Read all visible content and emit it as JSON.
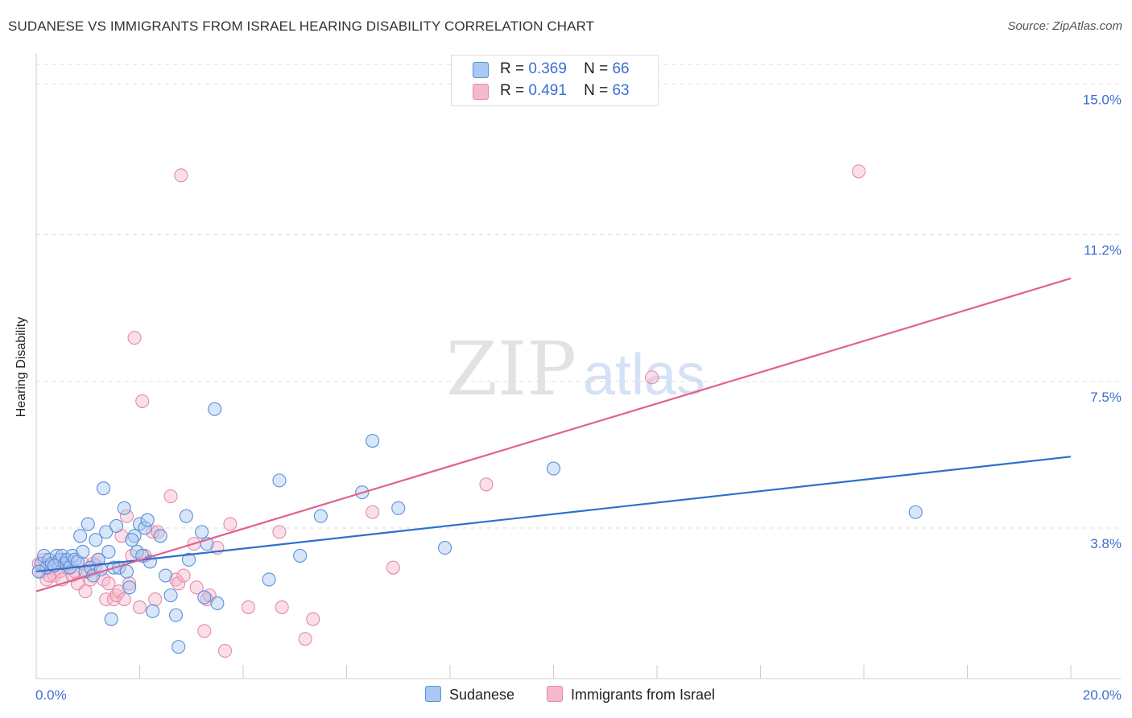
{
  "title": "SUDANESE VS IMMIGRANTS FROM ISRAEL HEARING DISABILITY CORRELATION CHART",
  "source": "Source: ZipAtlas.com",
  "watermark": {
    "zip": "ZIP",
    "atlas": "atlas"
  },
  "legend": {
    "rows": [
      {
        "r_label": "R =",
        "r_value": "0.369",
        "n_label": "N =",
        "n_value": "66"
      },
      {
        "r_label": "R =",
        "r_value": "0.491",
        "n_label": "N =",
        "n_value": "63"
      }
    ]
  },
  "bottom_legend": {
    "sudanese": "Sudanese",
    "israel": "Immigrants from Israel"
  },
  "colors": {
    "blue_fill": "#a9c8f2",
    "blue_stroke": "#5b8fd8",
    "blue_line": "#2f6fd0",
    "pink_fill": "#f6b8cb",
    "pink_stroke": "#e58aa6",
    "pink_line": "#e0618c",
    "axis_text": "#3a6fd0",
    "grid": "#dddddd"
  },
  "chart_data": {
    "type": "scatter",
    "xlabel": "",
    "ylabel": "Hearing Disability",
    "xlim": [
      0,
      20
    ],
    "ylim": [
      0,
      15.5
    ],
    "x_tick_labels": [
      "0.0%",
      "20.0%"
    ],
    "y_ticks": [
      3.8,
      7.5,
      11.2,
      15.0
    ],
    "y_tick_labels": [
      "3.8%",
      "7.5%",
      "11.2%",
      "15.0%"
    ],
    "grid": true,
    "legend_position": "top-center",
    "series": [
      {
        "name": "Sudanese",
        "r": 0.369,
        "n": 66,
        "trend": {
          "x": [
            0,
            20
          ],
          "y": [
            2.7,
            5.6
          ]
        },
        "points": [
          [
            0.1,
            2.9
          ],
          [
            0.15,
            3.1
          ],
          [
            0.2,
            2.8
          ],
          [
            0.25,
            3.0
          ],
          [
            0.3,
            2.9
          ],
          [
            0.4,
            3.1
          ],
          [
            0.45,
            3.0
          ],
          [
            0.5,
            3.1
          ],
          [
            0.55,
            2.9
          ],
          [
            0.6,
            3.0
          ],
          [
            0.65,
            2.8
          ],
          [
            0.7,
            3.1
          ],
          [
            0.75,
            3.0
          ],
          [
            0.8,
            2.95
          ],
          [
            0.85,
            3.6
          ],
          [
            0.9,
            3.2
          ],
          [
            0.95,
            2.7
          ],
          [
            1.0,
            3.9
          ],
          [
            1.05,
            2.8
          ],
          [
            1.1,
            2.6
          ],
          [
            1.15,
            3.5
          ],
          [
            1.2,
            3.0
          ],
          [
            1.25,
            2.75
          ],
          [
            1.3,
            4.8
          ],
          [
            1.35,
            3.7
          ],
          [
            1.4,
            3.2
          ],
          [
            1.45,
            1.5
          ],
          [
            1.5,
            2.8
          ],
          [
            1.55,
            3.85
          ],
          [
            1.6,
            2.8
          ],
          [
            1.7,
            4.3
          ],
          [
            1.75,
            2.7
          ],
          [
            1.8,
            2.3
          ],
          [
            1.9,
            3.6
          ],
          [
            1.95,
            3.2
          ],
          [
            2.0,
            3.9
          ],
          [
            2.05,
            3.1
          ],
          [
            2.1,
            3.8
          ],
          [
            2.15,
            4.0
          ],
          [
            2.2,
            2.95
          ],
          [
            2.25,
            1.7
          ],
          [
            2.4,
            3.6
          ],
          [
            2.5,
            2.6
          ],
          [
            2.6,
            2.1
          ],
          [
            2.7,
            1.6
          ],
          [
            2.75,
            0.8
          ],
          [
            2.9,
            4.1
          ],
          [
            2.95,
            3.0
          ],
          [
            3.2,
            3.7
          ],
          [
            3.25,
            2.05
          ],
          [
            3.3,
            3.4
          ],
          [
            3.5,
            1.9
          ],
          [
            3.45,
            6.8
          ],
          [
            4.5,
            2.5
          ],
          [
            4.7,
            5.0
          ],
          [
            5.1,
            3.1
          ],
          [
            5.5,
            4.1
          ],
          [
            6.3,
            4.7
          ],
          [
            6.5,
            6.0
          ],
          [
            7.0,
            4.3
          ],
          [
            7.9,
            3.3
          ],
          [
            10.0,
            5.3
          ],
          [
            17.0,
            4.2
          ],
          [
            0.05,
            2.7
          ],
          [
            0.35,
            2.85
          ],
          [
            1.85,
            3.5
          ]
        ]
      },
      {
        "name": "Immigrants from Israel",
        "r": 0.491,
        "n": 63,
        "trend": {
          "x": [
            0,
            20
          ],
          "y": [
            2.2,
            10.1
          ]
        },
        "points": [
          [
            0.05,
            2.9
          ],
          [
            0.1,
            2.7
          ],
          [
            0.15,
            3.0
          ],
          [
            0.2,
            2.5
          ],
          [
            0.3,
            2.8
          ],
          [
            0.35,
            2.6
          ],
          [
            0.4,
            2.9
          ],
          [
            0.45,
            2.7
          ],
          [
            0.5,
            2.5
          ],
          [
            0.55,
            3.0
          ],
          [
            0.6,
            2.8
          ],
          [
            0.7,
            2.6
          ],
          [
            0.75,
            2.7
          ],
          [
            0.8,
            2.4
          ],
          [
            0.9,
            2.9
          ],
          [
            0.95,
            2.2
          ],
          [
            1.0,
            2.7
          ],
          [
            1.05,
            2.5
          ],
          [
            1.1,
            2.9
          ],
          [
            1.15,
            2.85
          ],
          [
            1.2,
            3.0
          ],
          [
            1.3,
            2.5
          ],
          [
            1.35,
            2.0
          ],
          [
            1.4,
            2.4
          ],
          [
            1.5,
            2.0
          ],
          [
            1.55,
            2.1
          ],
          [
            1.6,
            2.2
          ],
          [
            1.65,
            3.6
          ],
          [
            1.7,
            2.0
          ],
          [
            1.75,
            4.1
          ],
          [
            1.8,
            2.4
          ],
          [
            1.85,
            3.1
          ],
          [
            1.9,
            8.6
          ],
          [
            2.0,
            1.8
          ],
          [
            2.05,
            7.0
          ],
          [
            2.1,
            3.1
          ],
          [
            2.25,
            3.7
          ],
          [
            2.3,
            2.0
          ],
          [
            2.35,
            3.7
          ],
          [
            2.6,
            4.6
          ],
          [
            2.7,
            2.5
          ],
          [
            2.75,
            2.4
          ],
          [
            2.8,
            12.7
          ],
          [
            2.85,
            2.6
          ],
          [
            3.05,
            3.4
          ],
          [
            3.1,
            2.3
          ],
          [
            3.25,
            1.2
          ],
          [
            3.3,
            2.0
          ],
          [
            3.35,
            2.1
          ],
          [
            3.5,
            3.3
          ],
          [
            3.65,
            0.7
          ],
          [
            3.75,
            3.9
          ],
          [
            4.1,
            1.8
          ],
          [
            4.7,
            3.7
          ],
          [
            4.75,
            1.8
          ],
          [
            5.2,
            1.0
          ],
          [
            5.35,
            1.5
          ],
          [
            6.5,
            4.2
          ],
          [
            6.9,
            2.8
          ],
          [
            8.7,
            4.9
          ],
          [
            11.9,
            7.6
          ],
          [
            15.9,
            12.8
          ],
          [
            0.25,
            2.6
          ]
        ]
      }
    ]
  }
}
